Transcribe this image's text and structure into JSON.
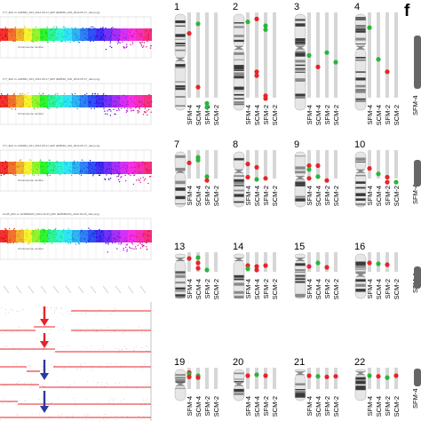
{
  "panel_letter": "f",
  "scatter_panels": [
    {
      "title": "177_E02 vs. E28994_A03_2012-05-17_E05 (E28994_A03_2012-05-17_ratio.png)",
      "xlabel": "Chromosome number"
    },
    {
      "title": "177_E02 vs. E28994_A03_2012-05-17_E05 (E28994_A03_2012-05-17_ratio.png)",
      "xlabel": "Chromosome number"
    },
    {
      "title": "177_E02 vs. E28994_A01_2012-05-17_E05 (E28994_A01_2012-05-17_ratio.png)",
      "xlabel": "Chromosome number"
    },
    {
      "title": "14-05_E02 vs. E26980A03_2012-04-23_E05 (E26980A03_2012-04-23_ratio.png)",
      "xlabel": "Chromosome number"
    }
  ],
  "lane_labels": [
    "SFM-4",
    "SCM-4",
    "SFM-2",
    "SCM-2"
  ],
  "chromosomes": [
    {
      "label": "1"
    },
    {
      "label": "2"
    },
    {
      "label": "3"
    },
    {
      "label": "4"
    },
    {
      "label": "7"
    },
    {
      "label": "8"
    },
    {
      "label": "9"
    },
    {
      "label": "10"
    },
    {
      "label": "13"
    },
    {
      "label": "14"
    },
    {
      "label": "15"
    },
    {
      "label": "16"
    },
    {
      "label": "19"
    },
    {
      "label": "20"
    },
    {
      "label": "21"
    },
    {
      "label": "22"
    }
  ],
  "colors": {
    "loss_dot": "#e8242a",
    "gain_dot": "#2bb53c",
    "lane_bar": "#d6d6d6",
    "arrow_red": "#e8242a",
    "arrow_blue": "#2b3c9c",
    "ideogram_light": "#e6e6e6",
    "ideogram_dark": "#3a3a3a"
  }
}
